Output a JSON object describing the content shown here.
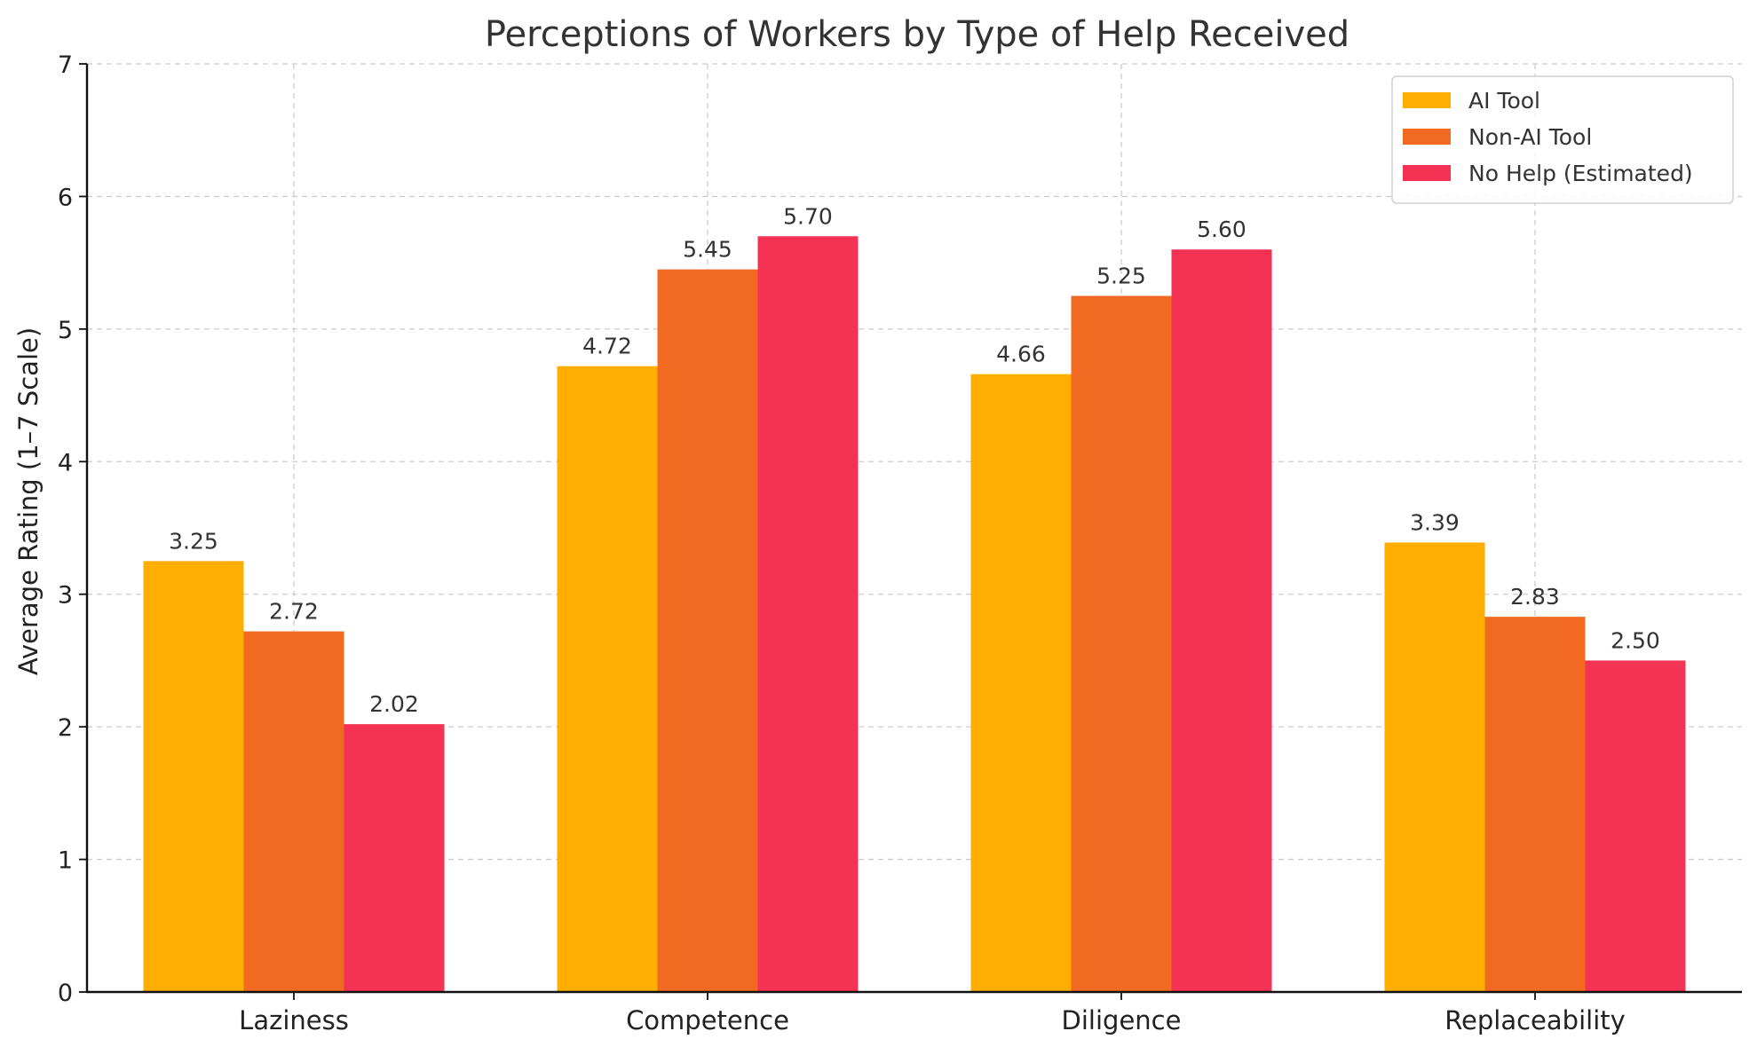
{
  "chart_data": {
    "type": "bar",
    "title": "Perceptions of Workers by Type of Help Received",
    "xlabel": "",
    "ylabel": "Average Rating (1–7 Scale)",
    "ylim": [
      0,
      7
    ],
    "yticks": [
      0,
      1,
      2,
      3,
      4,
      5,
      6,
      7
    ],
    "categories": [
      "Laziness",
      "Competence",
      "Diligence",
      "Replaceability"
    ],
    "series": [
      {
        "name": "AI Tool",
        "color": "#FFAE00",
        "values": [
          3.25,
          4.72,
          4.66,
          3.39
        ],
        "labels": [
          "3.25",
          "4.72",
          "4.66",
          "3.39"
        ]
      },
      {
        "name": "Non-AI Tool",
        "color": "#F26A21",
        "values": [
          2.72,
          5.45,
          5.25,
          2.83
        ],
        "labels": [
          "2.72",
          "5.45",
          "5.25",
          "2.83"
        ]
      },
      {
        "name": "No Help (Estimated)",
        "color": "#F43254",
        "values": [
          2.02,
          5.7,
          5.6,
          2.5
        ],
        "labels": [
          "2.02",
          "5.70",
          "5.60",
          "2.50"
        ]
      }
    ],
    "grid": true,
    "legend": {
      "position": "top-right"
    }
  }
}
